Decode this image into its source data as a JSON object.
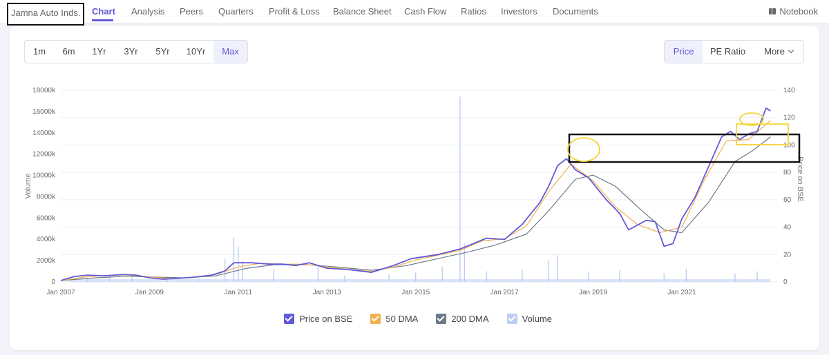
{
  "company": "Jamna Auto Inds.",
  "nav": {
    "tabs": [
      "Chart",
      "Analysis",
      "Peers",
      "Quarters",
      "Profit & Loss",
      "Balance Sheet",
      "Cash Flow",
      "Ratios",
      "Investors",
      "Documents"
    ],
    "active": "Chart",
    "notebook": "Notebook"
  },
  "ranges": {
    "items": [
      "1m",
      "6m",
      "1Yr",
      "3Yr",
      "5Yr",
      "10Yr",
      "Max"
    ],
    "active": "Max"
  },
  "metrics": {
    "price": "Price",
    "pe": "PE Ratio",
    "more": "More",
    "active": "Price"
  },
  "colors": {
    "accent": "#6258d6",
    "price": "#6259d8",
    "dma50": "#f2b04c",
    "dma200": "#6c7a89",
    "volume": "#bccdf4",
    "annotation_box": "#111111",
    "annotation_highlight": "#f5d438"
  },
  "chart_data": {
    "type": "line",
    "x_labels": [
      "Jan 2007",
      "Jan 2009",
      "Jan 2011",
      "Jan 2013",
      "Jan 2015",
      "Jan 2017",
      "Jan 2019",
      "Jan 2021"
    ],
    "y_left": {
      "title": "Volume",
      "ticks": [
        "0",
        "2000k",
        "4000k",
        "6000k",
        "8000k",
        "10000k",
        "12000k",
        "14000k",
        "16000k",
        "18000k"
      ],
      "range": [
        0,
        18000000
      ]
    },
    "y_right": {
      "title": "Price on BSE",
      "ticks": [
        "0",
        "20",
        "40",
        "60",
        "80",
        "100",
        "120",
        "140"
      ],
      "range": [
        0,
        140
      ]
    },
    "grid": true,
    "legend_position": "bottom",
    "series": [
      {
        "name": "Price on BSE",
        "kind": "price",
        "points": [
          [
            2007.0,
            1
          ],
          [
            2007.3,
            4
          ],
          [
            2007.6,
            5
          ],
          [
            2008.0,
            4.5
          ],
          [
            2008.4,
            5.5
          ],
          [
            2008.7,
            5
          ],
          [
            2009.0,
            3
          ],
          [
            2009.3,
            2
          ],
          [
            2009.6,
            2.5
          ],
          [
            2010.0,
            3.5
          ],
          [
            2010.4,
            5
          ],
          [
            2010.7,
            8
          ],
          [
            2010.9,
            14
          ],
          [
            2011.3,
            14
          ],
          [
            2011.7,
            13
          ],
          [
            2012.0,
            13
          ],
          [
            2012.3,
            12
          ],
          [
            2012.6,
            14
          ],
          [
            2013.0,
            10
          ],
          [
            2013.5,
            9
          ],
          [
            2014.0,
            7
          ],
          [
            2014.5,
            12
          ],
          [
            2014.9,
            17
          ],
          [
            2015.5,
            20
          ],
          [
            2016.0,
            24
          ],
          [
            2016.6,
            32
          ],
          [
            2017.0,
            31
          ],
          [
            2017.4,
            42
          ],
          [
            2017.8,
            58
          ],
          [
            2018.0,
            70
          ],
          [
            2018.2,
            85
          ],
          [
            2018.4,
            90
          ],
          [
            2018.6,
            82
          ],
          [
            2018.9,
            76
          ],
          [
            2019.0,
            72
          ],
          [
            2019.3,
            60
          ],
          [
            2019.6,
            50
          ],
          [
            2019.8,
            38
          ],
          [
            2020.2,
            45
          ],
          [
            2020.4,
            44
          ],
          [
            2020.6,
            26
          ],
          [
            2020.8,
            28
          ],
          [
            2021.0,
            46
          ],
          [
            2021.3,
            62
          ],
          [
            2021.6,
            84
          ],
          [
            2021.9,
            106
          ],
          [
            2022.1,
            110
          ],
          [
            2022.3,
            104
          ],
          [
            2022.5,
            108
          ],
          [
            2022.7,
            110
          ],
          [
            2022.9,
            127
          ],
          [
            2023.0,
            125
          ]
        ]
      },
      {
        "name": "50 DMA",
        "kind": "dma50",
        "points": [
          [
            2007.0,
            1
          ],
          [
            2007.5,
            3.5
          ],
          [
            2008.0,
            4.7
          ],
          [
            2008.5,
            5.1
          ],
          [
            2009.0,
            3.6
          ],
          [
            2009.5,
            2.4
          ],
          [
            2010.0,
            3.2
          ],
          [
            2010.5,
            5.5
          ],
          [
            2011.0,
            11
          ],
          [
            2011.5,
            13.6
          ],
          [
            2012.0,
            13
          ],
          [
            2012.5,
            13
          ],
          [
            2013.0,
            11
          ],
          [
            2013.5,
            9.2
          ],
          [
            2014.0,
            7.6
          ],
          [
            2014.5,
            11
          ],
          [
            2015.0,
            16
          ],
          [
            2015.5,
            19.5
          ],
          [
            2016.0,
            23
          ],
          [
            2016.5,
            30
          ],
          [
            2017.0,
            31.5
          ],
          [
            2017.5,
            41
          ],
          [
            2018.0,
            66
          ],
          [
            2018.5,
            86
          ],
          [
            2019.0,
            74
          ],
          [
            2019.5,
            55
          ],
          [
            2020.0,
            42
          ],
          [
            2020.5,
            36
          ],
          [
            2021.0,
            40
          ],
          [
            2021.5,
            74
          ],
          [
            2022.0,
            103
          ],
          [
            2022.5,
            104
          ],
          [
            2023.0,
            118
          ]
        ]
      },
      {
        "name": "200 DMA",
        "kind": "dma200",
        "points": [
          [
            2007.0,
            1
          ],
          [
            2007.8,
            3
          ],
          [
            2008.5,
            4.2
          ],
          [
            2009.2,
            3.5
          ],
          [
            2009.8,
            3
          ],
          [
            2010.5,
            4.5
          ],
          [
            2011.2,
            10
          ],
          [
            2011.8,
            12.5
          ],
          [
            2012.5,
            12.7
          ],
          [
            2013.2,
            11
          ],
          [
            2014.0,
            8.5
          ],
          [
            2014.8,
            12
          ],
          [
            2015.5,
            17
          ],
          [
            2016.2,
            22
          ],
          [
            2016.8,
            27
          ],
          [
            2017.5,
            35
          ],
          [
            2018.0,
            52
          ],
          [
            2018.6,
            75
          ],
          [
            2019.0,
            78
          ],
          [
            2019.5,
            70
          ],
          [
            2020.0,
            55
          ],
          [
            2020.6,
            38
          ],
          [
            2021.0,
            36
          ],
          [
            2021.6,
            58
          ],
          [
            2022.2,
            88
          ],
          [
            2022.6,
            96
          ],
          [
            2023.0,
            106
          ]
        ]
      },
      {
        "name": "Volume",
        "kind": "volume",
        "points": [
          [
            2007.6,
            400000
          ],
          [
            2008.1,
            700000
          ],
          [
            2008.6,
            500000
          ],
          [
            2009.4,
            300000
          ],
          [
            2010.1,
            400000
          ],
          [
            2010.7,
            2200000
          ],
          [
            2010.9,
            4200000
          ],
          [
            2011.0,
            3300000
          ],
          [
            2011.1,
            2000000
          ],
          [
            2011.8,
            1200000
          ],
          [
            2012.8,
            1600000
          ],
          [
            2013.4,
            600000
          ],
          [
            2014.4,
            700000
          ],
          [
            2015.0,
            900000
          ],
          [
            2015.6,
            1400000
          ],
          [
            2016.0,
            17400000
          ],
          [
            2016.1,
            3600000
          ],
          [
            2016.6,
            1000000
          ],
          [
            2017.4,
            1200000
          ],
          [
            2018.0,
            2000000
          ],
          [
            2018.2,
            2500000
          ],
          [
            2018.9,
            1000000
          ],
          [
            2019.6,
            1100000
          ],
          [
            2020.6,
            800000
          ],
          [
            2021.1,
            1200000
          ],
          [
            2022.2,
            800000
          ],
          [
            2022.7,
            1000000
          ]
        ]
      }
    ]
  },
  "legend": [
    "Price on BSE",
    "50 DMA",
    "200 DMA",
    "Volume"
  ]
}
